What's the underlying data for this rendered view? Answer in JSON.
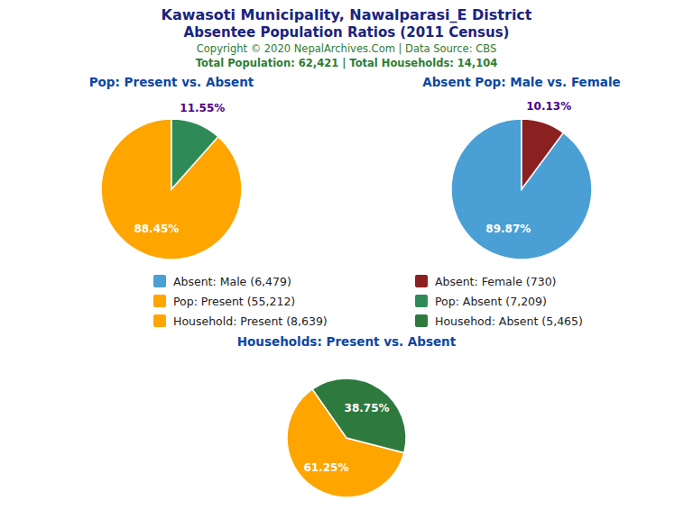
{
  "title": "Kawasoti Municipality, Nawalparasi_E District",
  "subtitle": "Absentee Population Ratios (2011 Census)",
  "annotations": [
    "Copyright © 2020 NepalArchives.Com | Data Source: CBS",
    "Total Population: 62,421 | Total Households: 14,104"
  ],
  "chart_data": [
    {
      "type": "pie",
      "title": "Pop: Present vs. Absent",
      "categories": [
        "Pop: Present (55,212)",
        "Pop: Absent (7,209)"
      ],
      "values": [
        88.45,
        11.55
      ],
      "value_labels": [
        "88.45%",
        "11.55%"
      ],
      "colors": [
        "#FFA500",
        "#2E8B57"
      ],
      "data_labels": true
    },
    {
      "type": "pie",
      "title": "Absent Pop: Male vs. Female",
      "categories": [
        "Absent: Male (6,479)",
        "Absent: Female (730)"
      ],
      "values": [
        89.87,
        10.13
      ],
      "value_labels": [
        "89.87%",
        "10.13%"
      ],
      "colors": [
        "#4A9FD4",
        "#8B2020"
      ],
      "data_labels": true
    },
    {
      "type": "pie",
      "title": "Households: Present vs. Absent",
      "categories": [
        "Household: Present (8,639)",
        "Househod: Absent (5,465)"
      ],
      "values": [
        61.25,
        38.75
      ],
      "value_labels": [
        "61.25%",
        "38.75%"
      ],
      "colors": [
        "#FFA500",
        "#2E7A3E"
      ],
      "data_labels": true
    }
  ]
}
